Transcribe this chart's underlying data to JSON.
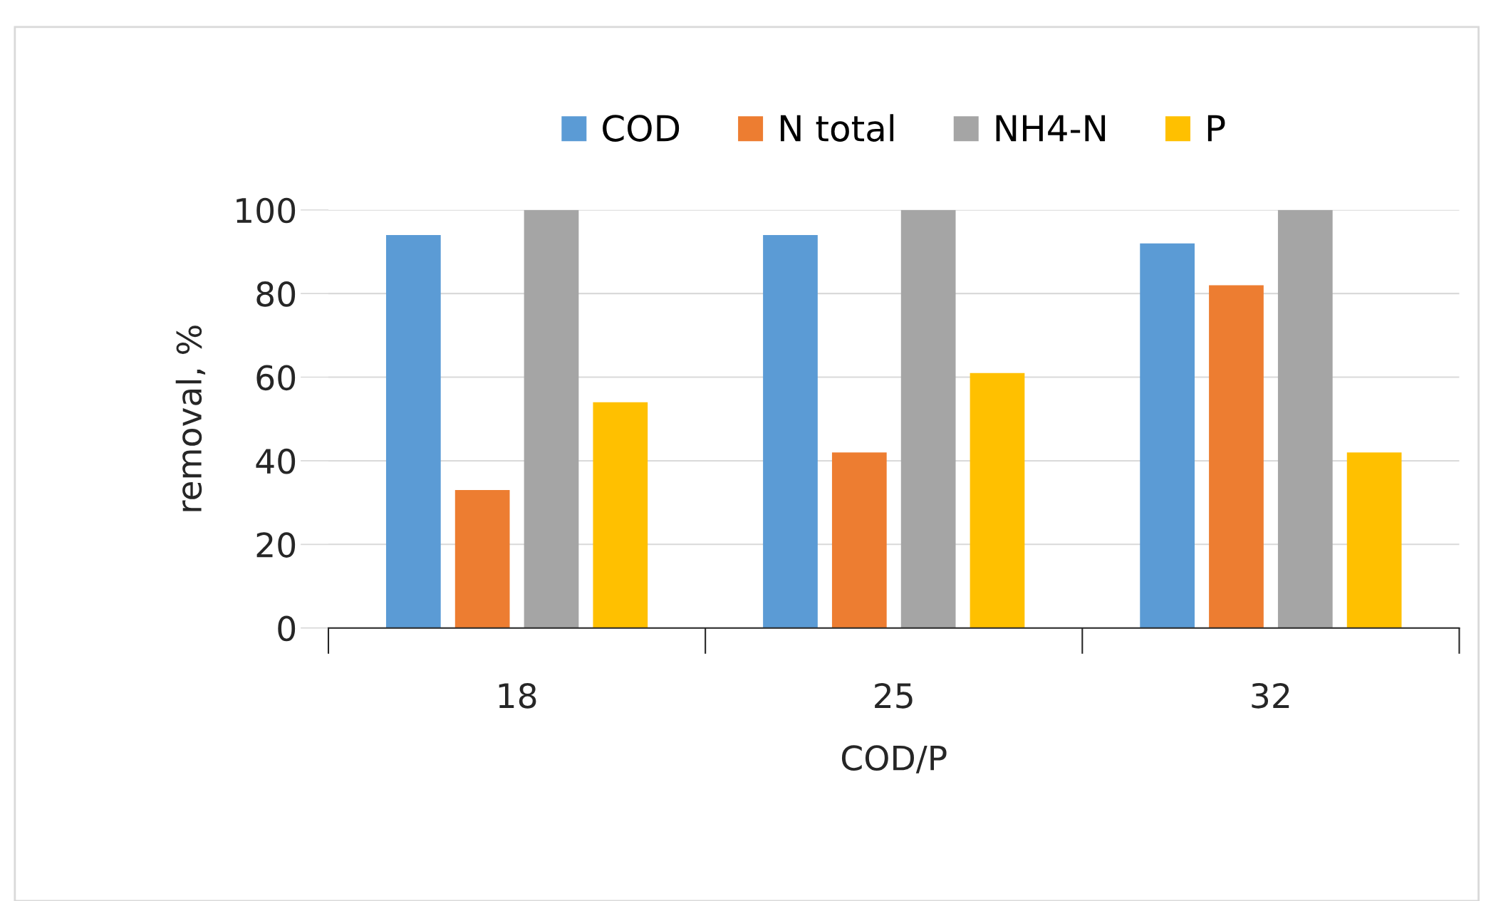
{
  "chart_data": {
    "type": "bar",
    "xlabel": "COD/P",
    "ylabel": "removal, %",
    "categories": [
      "18",
      "25",
      "32"
    ],
    "series": [
      {
        "name": "COD",
        "color": "#5b9bd5",
        "values": [
          94,
          94,
          92
        ]
      },
      {
        "name": "N total",
        "color": "#ed7d31",
        "values": [
          33,
          42,
          82
        ]
      },
      {
        "name": "NH4-N",
        "color": "#a5a5a5",
        "values": [
          100,
          100,
          100
        ]
      },
      {
        "name": "P",
        "color": "#ffc000",
        "values": [
          54,
          61,
          42
        ]
      }
    ],
    "ylim": [
      0,
      100
    ],
    "yticks": [
      0,
      20,
      40,
      60,
      80,
      100
    ],
    "grid": "y",
    "legend": "top"
  }
}
